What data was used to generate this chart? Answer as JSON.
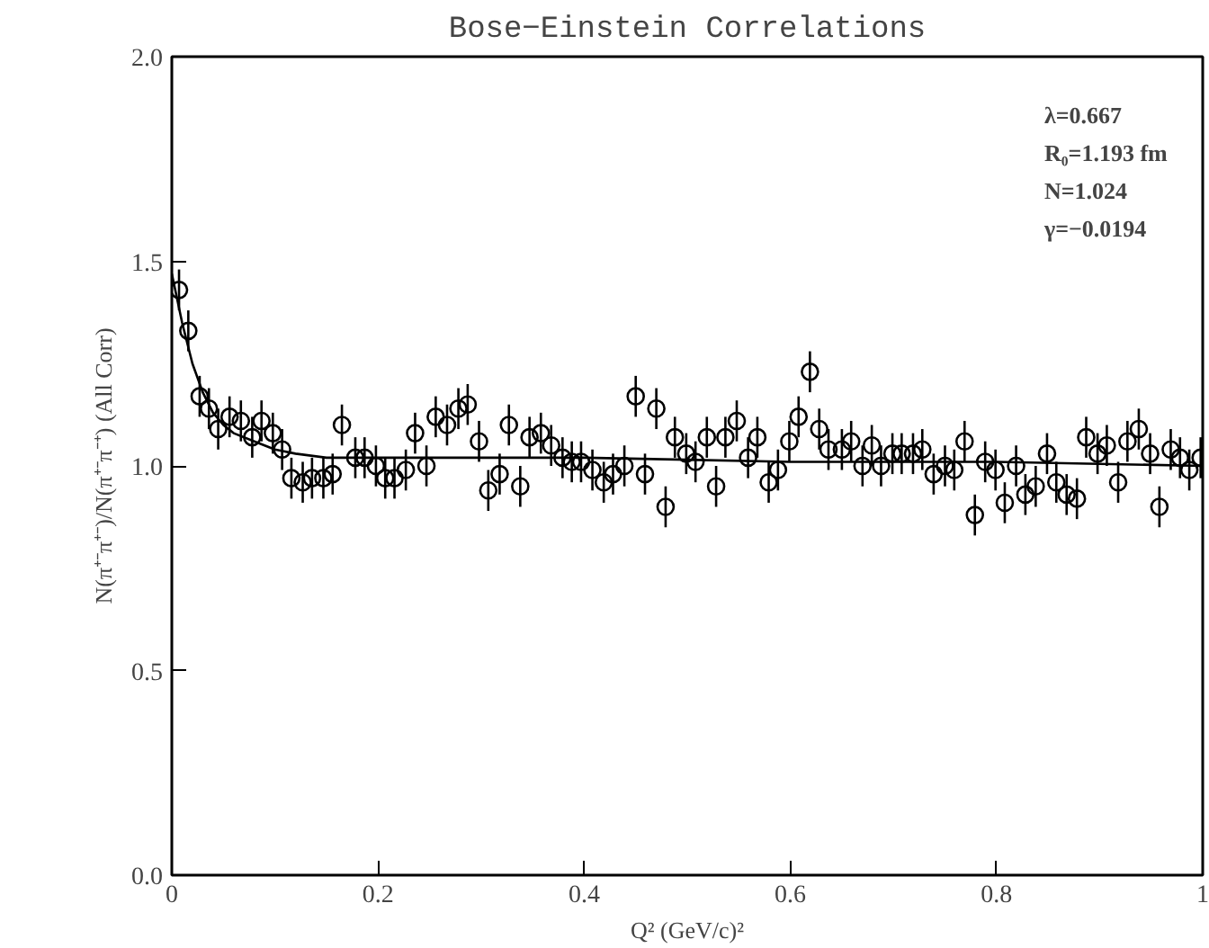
{
  "chart_data": {
    "type": "scatter",
    "title": "Bose−Einstein Correlations",
    "xlabel": "Q² (GeV/c)²",
    "ylabel": "N(π⁺⁻π⁺⁻)/N(π⁺⁻π⁻⁺) (All Corr)",
    "xlim": [
      0,
      1
    ],
    "ylim": [
      0,
      2
    ],
    "xticks": [
      0,
      0.2,
      0.4,
      0.6,
      0.8,
      1
    ],
    "yticks": [
      {
        "value": 0,
        "label": "0.0"
      },
      0.5,
      {
        "value": 1,
        "label": "1.0"
      },
      1.5,
      {
        "value": 2,
        "label": "2.0"
      }
    ],
    "grid": false,
    "marker": "circle",
    "annotations": [
      "λ=0.667",
      "R₀=1.193 fm",
      "N=1.024",
      "γ=−0.0194"
    ],
    "series": [
      {
        "color": "#000000",
        "x": [
          0.007,
          0.016,
          0.027,
          0.036,
          0.045,
          0.056,
          0.067,
          0.078,
          0.087,
          0.098,
          0.107,
          0.116,
          0.127,
          0.136,
          0.147,
          0.156,
          0.165,
          0.178,
          0.187,
          0.198,
          0.207,
          0.216,
          0.227,
          0.236,
          0.247,
          0.256,
          0.267,
          0.278,
          0.287,
          0.298,
          0.307,
          0.318,
          0.327,
          0.338,
          0.347,
          0.358,
          0.368,
          0.379,
          0.388,
          0.397,
          0.408,
          0.419,
          0.428,
          0.439,
          0.45,
          0.459,
          0.47,
          0.479,
          0.488,
          0.499,
          0.508,
          0.519,
          0.528,
          0.537,
          0.548,
          0.559,
          0.568,
          0.579,
          0.588,
          0.599,
          0.608,
          0.619,
          0.628,
          0.637,
          0.65,
          0.659,
          0.67,
          0.679,
          0.688,
          0.699,
          0.708,
          0.719,
          0.728,
          0.739,
          0.75,
          0.759,
          0.769,
          0.779,
          0.789,
          0.799,
          0.808,
          0.819,
          0.828,
          0.838,
          0.849,
          0.858,
          0.868,
          0.878,
          0.887,
          0.898,
          0.907,
          0.918,
          0.927,
          0.938,
          0.949,
          0.958,
          0.969,
          0.978,
          0.987,
          0.998
        ],
        "values": [
          1.43,
          1.33,
          1.17,
          1.14,
          1.09,
          1.12,
          1.11,
          1.07,
          1.11,
          1.08,
          1.04,
          0.97,
          0.96,
          0.97,
          0.97,
          0.98,
          1.1,
          1.02,
          1.02,
          1.0,
          0.97,
          0.97,
          0.99,
          1.08,
          1.0,
          1.12,
          1.1,
          1.14,
          1.15,
          1.06,
          0.94,
          0.98,
          1.1,
          0.95,
          1.07,
          1.08,
          1.05,
          1.02,
          1.01,
          1.01,
          0.99,
          0.96,
          0.98,
          1.0,
          1.17,
          0.98,
          1.14,
          0.9,
          1.07,
          1.03,
          1.01,
          1.07,
          0.95,
          1.07,
          1.11,
          1.02,
          1.07,
          0.96,
          0.99,
          1.06,
          1.12,
          1.23,
          1.09,
          1.04,
          1.04,
          1.06,
          1.0,
          1.05,
          1.0,
          1.03,
          1.03,
          1.03,
          1.04,
          0.98,
          1.0,
          0.99,
          1.06,
          0.88,
          1.01,
          0.99,
          0.91,
          1.0,
          0.93,
          0.95,
          1.03,
          0.96,
          0.93,
          0.92,
          1.07,
          1.03,
          1.05,
          0.96,
          1.06,
          1.09,
          1.03,
          0.9,
          1.04,
          1.02,
          0.99,
          1.02
        ],
        "errors": [
          0.05,
          0.05,
          0.05,
          0.05,
          0.05,
          0.05,
          0.05,
          0.05,
          0.05,
          0.05,
          0.05,
          0.05,
          0.05,
          0.05,
          0.05,
          0.05,
          0.05,
          0.05,
          0.05,
          0.05,
          0.05,
          0.05,
          0.05,
          0.05,
          0.05,
          0.05,
          0.05,
          0.05,
          0.05,
          0.05,
          0.05,
          0.05,
          0.05,
          0.05,
          0.05,
          0.05,
          0.05,
          0.05,
          0.05,
          0.05,
          0.05,
          0.05,
          0.05,
          0.05,
          0.05,
          0.05,
          0.05,
          0.05,
          0.05,
          0.05,
          0.05,
          0.05,
          0.05,
          0.05,
          0.05,
          0.05,
          0.05,
          0.05,
          0.05,
          0.05,
          0.05,
          0.05,
          0.05,
          0.05,
          0.05,
          0.05,
          0.05,
          0.05,
          0.05,
          0.05,
          0.05,
          0.05,
          0.05,
          0.05,
          0.05,
          0.05,
          0.05,
          0.05,
          0.05,
          0.05,
          0.05,
          0.05,
          0.05,
          0.05,
          0.05,
          0.05,
          0.05,
          0.05,
          0.05,
          0.05,
          0.05,
          0.05,
          0.05,
          0.05,
          0.05,
          0.05,
          0.05,
          0.05,
          0.05,
          0.05
        ]
      },
      {
        "type": "line",
        "color": "#000000",
        "marker": "none",
        "line_style": "solid",
        "x": [
          0,
          0.01,
          0.02,
          0.03,
          0.04,
          0.05,
          0.06,
          0.08,
          0.1,
          0.12,
          0.15,
          0.2,
          0.4,
          0.6,
          0.8,
          1.0
        ],
        "values": [
          1.47,
          1.35,
          1.25,
          1.18,
          1.13,
          1.1,
          1.08,
          1.06,
          1.04,
          1.03,
          1.02,
          1.02,
          1.02,
          1.01,
          1.01,
          1.0
        ]
      }
    ]
  }
}
